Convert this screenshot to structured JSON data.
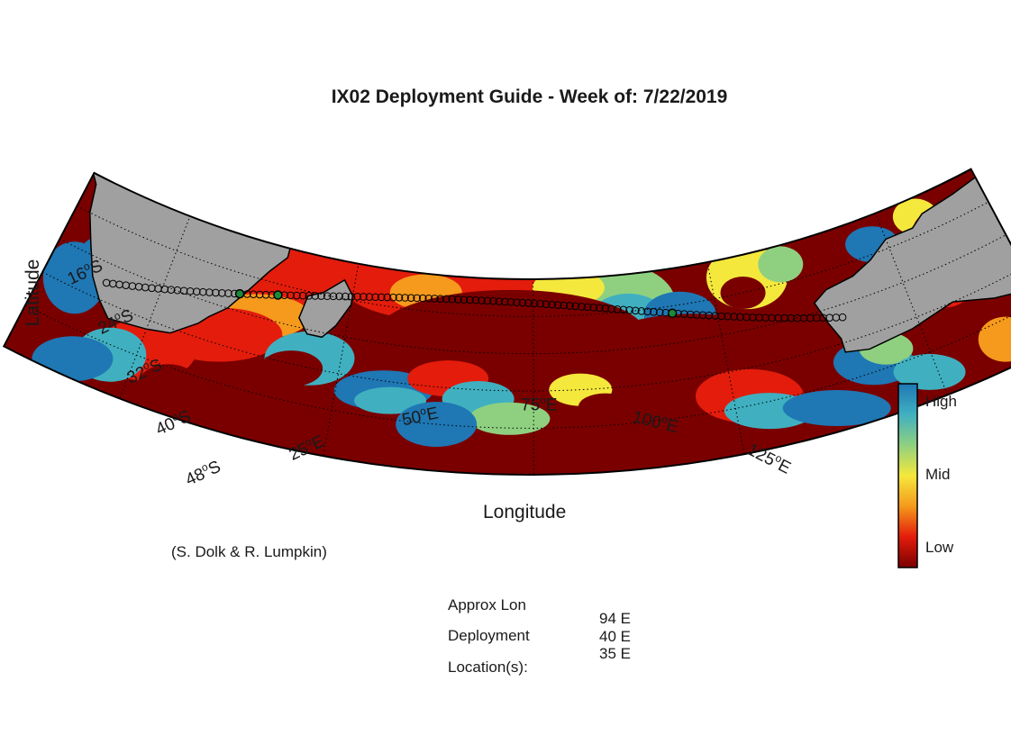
{
  "title": "IX02 Deployment Guide - Week of: 7/22/2019",
  "axes": {
    "xlabel": "Longitude",
    "ylabel": "Latitude",
    "lat_ticks": [
      {
        "deg": "16",
        "hem": "S"
      },
      {
        "deg": "24",
        "hem": "S"
      },
      {
        "deg": "32",
        "hem": "S"
      },
      {
        "deg": "40",
        "hem": "S"
      },
      {
        "deg": "48",
        "hem": "S"
      }
    ],
    "lon_ticks": [
      {
        "deg": "25",
        "hem": "E"
      },
      {
        "deg": "50",
        "hem": "E"
      },
      {
        "deg": "75",
        "hem": "E"
      },
      {
        "deg": "100",
        "hem": "E"
      },
      {
        "deg": "125",
        "hem": "E"
      }
    ]
  },
  "colorbar": {
    "labels": [
      "High",
      "Mid",
      "Low"
    ],
    "colors": [
      "#1f77b4",
      "#40b0c0",
      "#8fd080",
      "#f5e83c",
      "#f59a1c",
      "#e31c0c",
      "#7a0000"
    ]
  },
  "credit": "(S. Dolk & R. Lumpkin)",
  "deployment_info": {
    "label_lines": [
      "Approx Lon",
      "Deployment",
      "Location(s):"
    ],
    "longitudes": [
      "94 E",
      "40 E",
      "35 E"
    ]
  },
  "map": {
    "land_color": "#a0a0a0",
    "ocean_low_color": "#7a0000",
    "projection": "conic",
    "grid": "dotted",
    "cruise_track": {
      "from_lon": 18,
      "to_lon": 116,
      "deployment_markers_lon": [
        35,
        40,
        94
      ]
    }
  }
}
